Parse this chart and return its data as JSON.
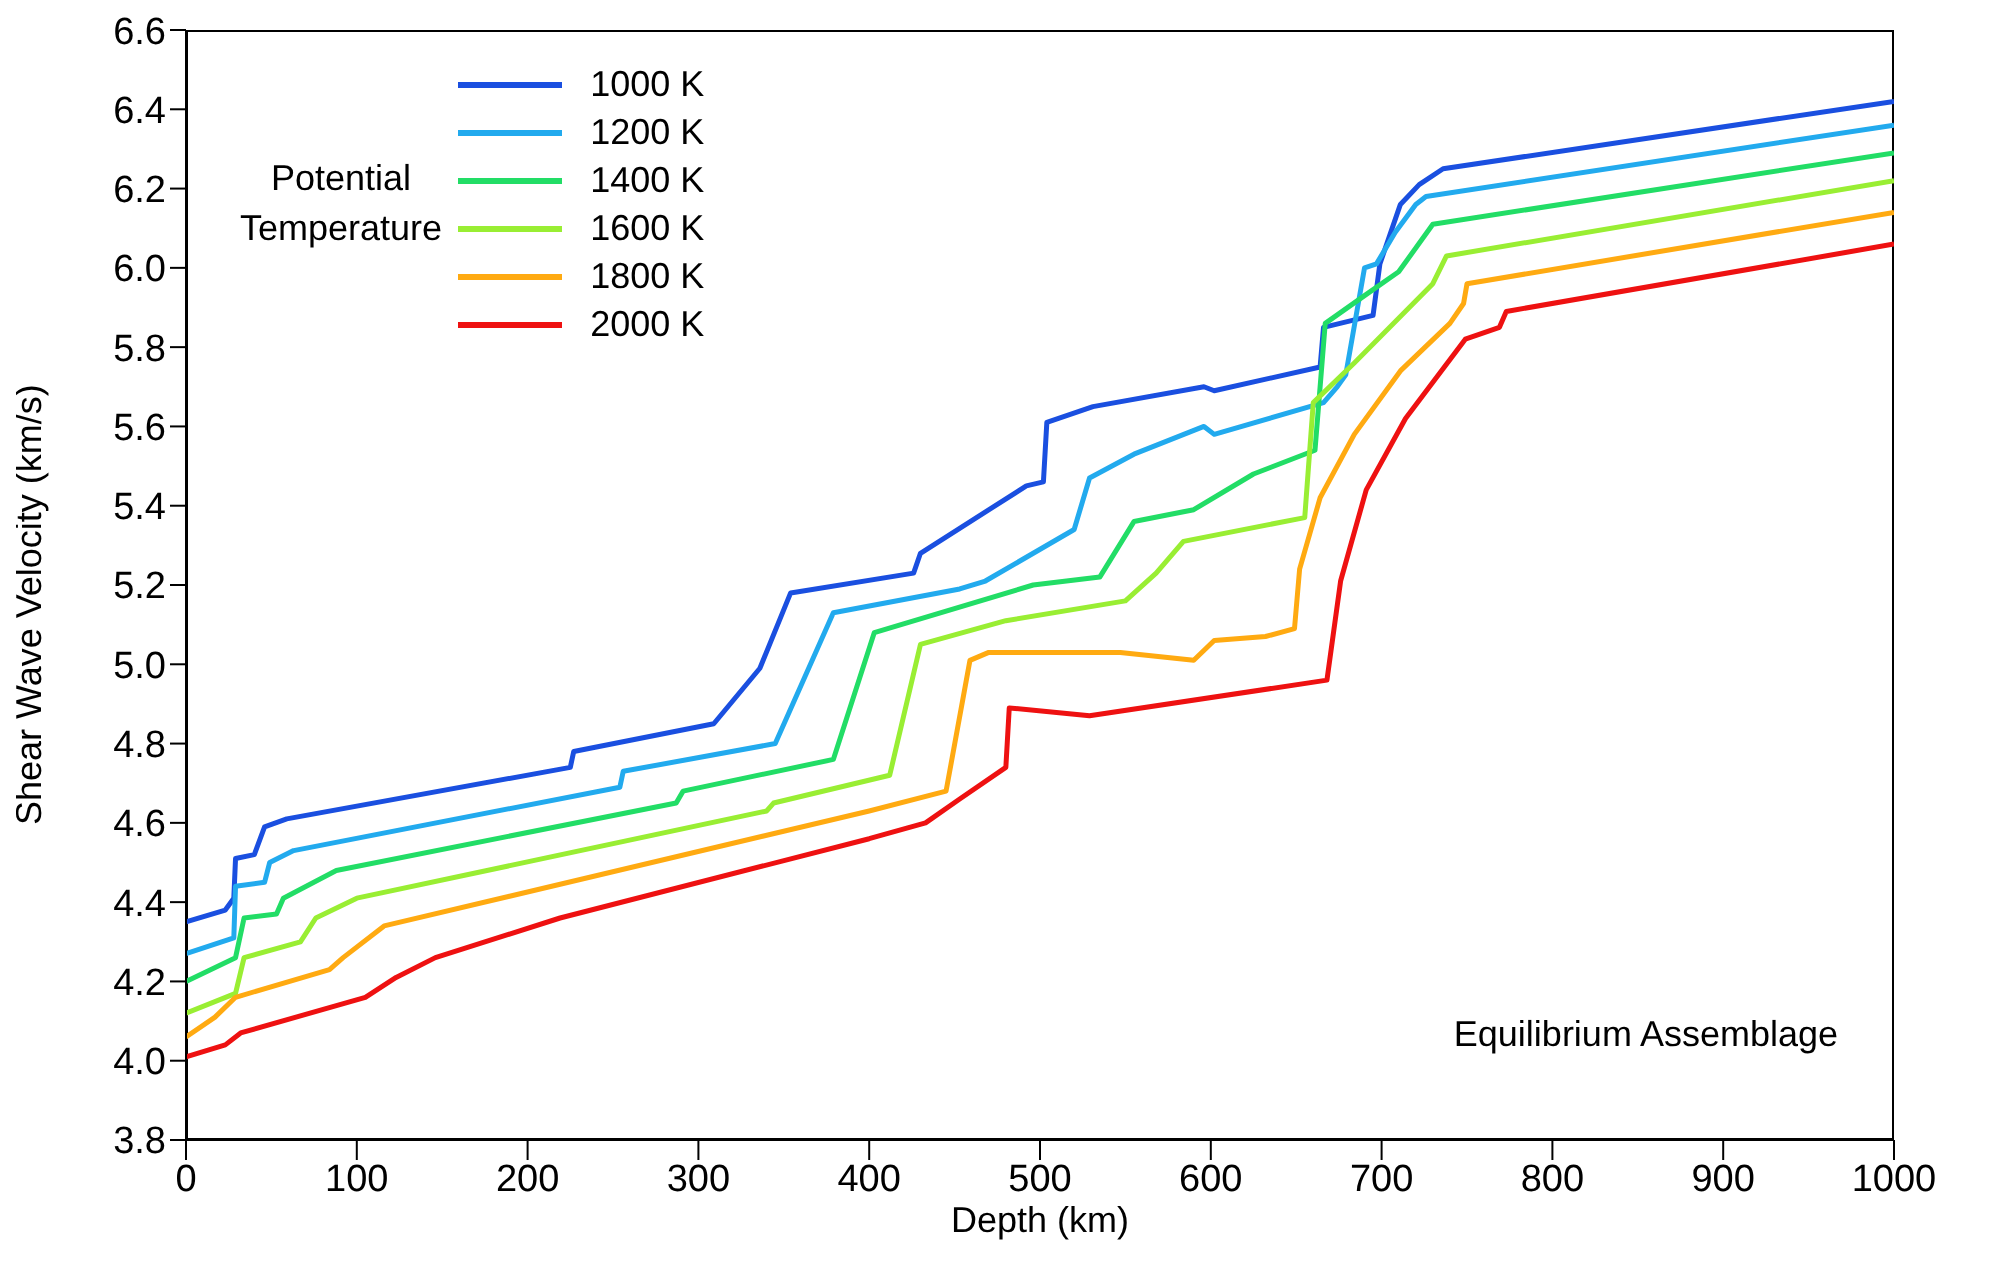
{
  "chart_data": {
    "type": "line",
    "xlabel": "Depth (km)",
    "ylabel": "Shear Wave Velocity (km/s)",
    "legend_title": "Potential Temperature",
    "legend": "top left",
    "grid": false,
    "marker": "none",
    "line_style": "solid",
    "xlim": [
      0,
      1000
    ],
    "xticks": [
      0,
      100,
      200,
      300,
      400,
      500,
      600,
      700,
      800,
      900,
      1000
    ],
    "ylim": [
      3.8,
      6.6
    ],
    "yticks": [
      3.8,
      {
        "value": 4,
        "label": "4.0"
      },
      4.2,
      4.4,
      4.6,
      4.8,
      {
        "value": 5,
        "label": "5.0"
      },
      5.2,
      5.4,
      5.6,
      5.8,
      {
        "value": 6,
        "label": "6.0"
      },
      6.2,
      6.4,
      6.6
    ],
    "annotations": [
      "Equilibrium Assemblage"
    ],
    "series": [
      {
        "name": "1000 K",
        "color": "#1a4fe0",
        "x": [
          0,
          23,
          28,
          29,
          40,
          46,
          59,
          225,
          227,
          309,
          336,
          354,
          426,
          430,
          492,
          502,
          504,
          531,
          596,
          602,
          664,
          666,
          695,
          699,
          711,
          722,
          736,
          1000
        ],
        "values": [
          4.35,
          4.38,
          4.41,
          4.51,
          4.52,
          4.59,
          4.61,
          4.74,
          4.78,
          4.85,
          4.99,
          5.18,
          5.23,
          5.28,
          5.45,
          5.46,
          5.61,
          5.65,
          5.7,
          5.69,
          5.75,
          5.85,
          5.88,
          6.01,
          6.16,
          6.21,
          6.25,
          6.42
        ]
      },
      {
        "name": "1200 K",
        "color": "#22aaee",
        "x": [
          0,
          28,
          29,
          46,
          49,
          63,
          254,
          256,
          345,
          379,
          453,
          468,
          520,
          529,
          555,
          596,
          602,
          666,
          674,
          679,
          690,
          697,
          708,
          720,
          726,
          1000
        ],
        "values": [
          4.27,
          4.31,
          4.44,
          4.45,
          4.5,
          4.53,
          4.69,
          4.73,
          4.8,
          5.13,
          5.19,
          5.21,
          5.34,
          5.47,
          5.53,
          5.6,
          5.58,
          5.66,
          5.7,
          5.73,
          6.0,
          6.01,
          6.09,
          6.16,
          6.18,
          6.36
        ]
      },
      {
        "name": "1400 K",
        "color": "#22dd66",
        "x": [
          0,
          29,
          34,
          53,
          57,
          88,
          287,
          291,
          379,
          403,
          496,
          535,
          555,
          590,
          625,
          661,
          667,
          690,
          710,
          730,
          1000
        ],
        "values": [
          4.2,
          4.26,
          4.36,
          4.37,
          4.41,
          4.48,
          4.65,
          4.68,
          4.76,
          5.08,
          5.2,
          5.22,
          5.36,
          5.39,
          5.48,
          5.54,
          5.86,
          5.93,
          5.99,
          6.11,
          6.29
        ]
      },
      {
        "name": "1600 K",
        "color": "#99ee33",
        "x": [
          0,
          29,
          34,
          67,
          76,
          100,
          340,
          344,
          412,
          430,
          480,
          550,
          568,
          584,
          655,
          660,
          684,
          730,
          738,
          1000
        ],
        "values": [
          4.12,
          4.17,
          4.26,
          4.3,
          4.36,
          4.41,
          4.63,
          4.65,
          4.72,
          5.05,
          5.11,
          5.16,
          5.23,
          5.31,
          5.37,
          5.66,
          5.76,
          5.96,
          6.03,
          6.22
        ]
      },
      {
        "name": "1800 K",
        "color": "#ffaa11",
        "x": [
          0,
          17,
          29,
          84,
          92,
          116,
          400,
          445,
          459,
          470,
          547,
          590,
          602,
          632,
          649,
          652,
          664,
          684,
          711,
          740,
          748,
          750,
          1000
        ],
        "values": [
          4.06,
          4.11,
          4.16,
          4.23,
          4.26,
          4.34,
          4.63,
          4.68,
          5.01,
          5.03,
          5.03,
          5.01,
          5.06,
          5.07,
          5.09,
          5.24,
          5.42,
          5.58,
          5.74,
          5.86,
          5.91,
          5.96,
          6.14
        ]
      },
      {
        "name": "2000 K",
        "color": "#ee1111",
        "x": [
          0,
          23,
          32,
          105,
          123,
          146,
          219,
          400,
          433,
          453,
          480,
          482,
          529,
          668,
          676,
          691,
          714,
          749,
          769,
          773,
          1000
        ],
        "values": [
          4.01,
          4.04,
          4.07,
          4.16,
          4.21,
          4.26,
          4.36,
          4.56,
          4.6,
          4.66,
          4.74,
          4.89,
          4.87,
          4.96,
          5.21,
          5.44,
          5.62,
          5.82,
          5.85,
          5.89,
          6.06
        ]
      }
    ]
  }
}
